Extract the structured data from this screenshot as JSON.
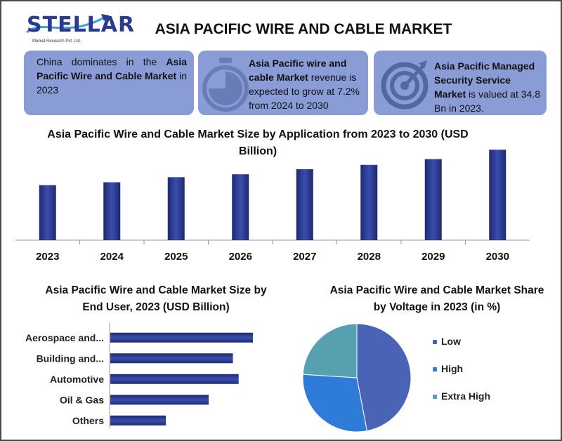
{
  "logo": {
    "name": "STELLAR",
    "subtitle": "Market Research Pvt. Ltd."
  },
  "title": "ASIA PACIFIC WIRE AND CABLE MARKET",
  "cards": [
    {
      "text_pre": "China dominates in the ",
      "bold": "Asia Pacific Wire and Cable Market",
      "text_post": " in 2023",
      "icon": "none"
    },
    {
      "text_pre": "",
      "bold": "Asia Pacific wire and cable Market",
      "text_post": " revenue is expected to grow at 7.2% from 2024 to 2030",
      "icon": "stopwatch-icon"
    },
    {
      "text_pre": "",
      "bold": "Asia Pacific Managed Security Service Market",
      "text_post": " is valued at 34.8 Bn in 2023.",
      "icon": "target-icon"
    }
  ],
  "chart_data": [
    {
      "type": "bar",
      "title": "Asia Pacific Wire and Cable Market Size by Application from 2023 to 2030 (USD Billion)",
      "categories": [
        "2023",
        "2024",
        "2025",
        "2026",
        "2027",
        "2028",
        "2029",
        "2030"
      ],
      "values": [
        76,
        80,
        87,
        91,
        98,
        104,
        112,
        125
      ],
      "ylim": [
        0,
        130
      ],
      "xlabel": "",
      "ylabel": "",
      "grid": false,
      "color": "#2c3a8c"
    },
    {
      "type": "bar",
      "orientation": "horizontal",
      "title": "Asia Pacific Wire and Cable Market Size by End User, 2023 (USD Billion)",
      "categories": [
        "Aerospace and...",
        "Building and...",
        "Automotive",
        "Oil & Gas",
        "Others"
      ],
      "values": [
        100,
        86,
        90,
        69,
        39
      ],
      "xlim": [
        0,
        100
      ],
      "grid": false,
      "color": "#2c3a8c"
    },
    {
      "type": "pie",
      "title": "Asia Pacific Wire and Cable Market Share by Voltage in 2023 (in %)",
      "categories": [
        "Low",
        "High",
        "Extra High"
      ],
      "values": [
        47,
        29,
        24
      ],
      "colors": [
        "#4a63b5",
        "#2f7bd8",
        "#56a0b0"
      ],
      "legend": "right"
    }
  ]
}
